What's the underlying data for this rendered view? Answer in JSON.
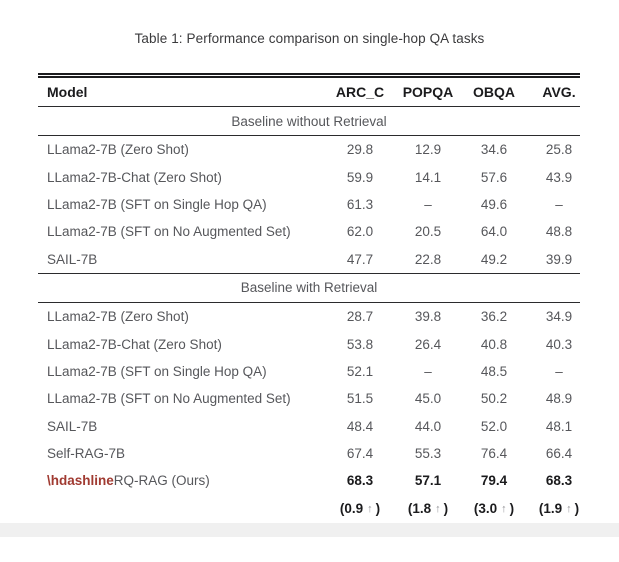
{
  "caption": "Table 1: Performance comparison on single-hop QA tasks",
  "colors": {
    "accent_red": "#a03a31",
    "text_dark": "#1b1b1d",
    "text_body_gray": "#56575b",
    "page_gap_gray": "#f0f0f0"
  },
  "table": {
    "columns": {
      "model": "Model",
      "arc_c": "ARC_C",
      "popqa": "POPQA",
      "obqa": "OBQA",
      "avg": "AVG."
    },
    "sections": [
      {
        "label": "Baseline without Retrieval",
        "rows": [
          {
            "model": "LLama2-7B (Zero Shot)",
            "values": [
              "29.8",
              "12.9",
              "34.6",
              "25.8"
            ]
          },
          {
            "model": "LLama2-7B-Chat (Zero Shot)",
            "values": [
              "59.9",
              "14.1",
              "57.6",
              "43.9"
            ]
          },
          {
            "model": "LLama2-7B (SFT on Single Hop QA)",
            "values": [
              "61.3",
              "–",
              "49.6",
              "–"
            ]
          },
          {
            "model": "LLama2-7B (SFT on No Augmented Set)",
            "values": [
              "62.0",
              "20.5",
              "64.0",
              "48.8"
            ]
          },
          {
            "model": "SAIL-7B",
            "values": [
              "47.7",
              "22.8",
              "49.2",
              "39.9"
            ]
          }
        ]
      },
      {
        "label": "Baseline with Retrieval",
        "rows": [
          {
            "model": "LLama2-7B (Zero Shot)",
            "values": [
              "28.7",
              "39.8",
              "36.2",
              "34.9"
            ]
          },
          {
            "model": "LLama2-7B-Chat (Zero Shot)",
            "values": [
              "53.8",
              "26.4",
              "40.8",
              "40.3"
            ]
          },
          {
            "model": "LLama2-7B (SFT on Single Hop QA)",
            "values": [
              "52.1",
              "–",
              "48.5",
              "–"
            ]
          },
          {
            "model": "LLama2-7B (SFT on No Augmented Set)",
            "values": [
              "51.5",
              "45.0",
              "50.2",
              "48.9"
            ]
          },
          {
            "model": "SAIL-7B",
            "values": [
              "48.4",
              "44.0",
              "52.0",
              "48.1"
            ]
          },
          {
            "model": "Self-RAG-7B",
            "values": [
              "67.4",
              "55.3",
              "76.4",
              "66.4"
            ]
          },
          {
            "model_prefix": "\\hdashline",
            "model": "RQ-RAG (Ours)",
            "values": [
              "68.3",
              "57.1",
              "79.4",
              "68.3"
            ]
          }
        ]
      }
    ],
    "improvement_row": {
      "cells": [
        {
          "left": "(0.9",
          "arrow": "↑",
          "right": ")"
        },
        {
          "left": "(1.8",
          "arrow": "↑",
          "right": ")"
        },
        {
          "left": "(3.0",
          "arrow": "↑",
          "right": ")"
        },
        {
          "left": "(1.9",
          "arrow": "↑",
          "right": ")"
        }
      ]
    }
  }
}
